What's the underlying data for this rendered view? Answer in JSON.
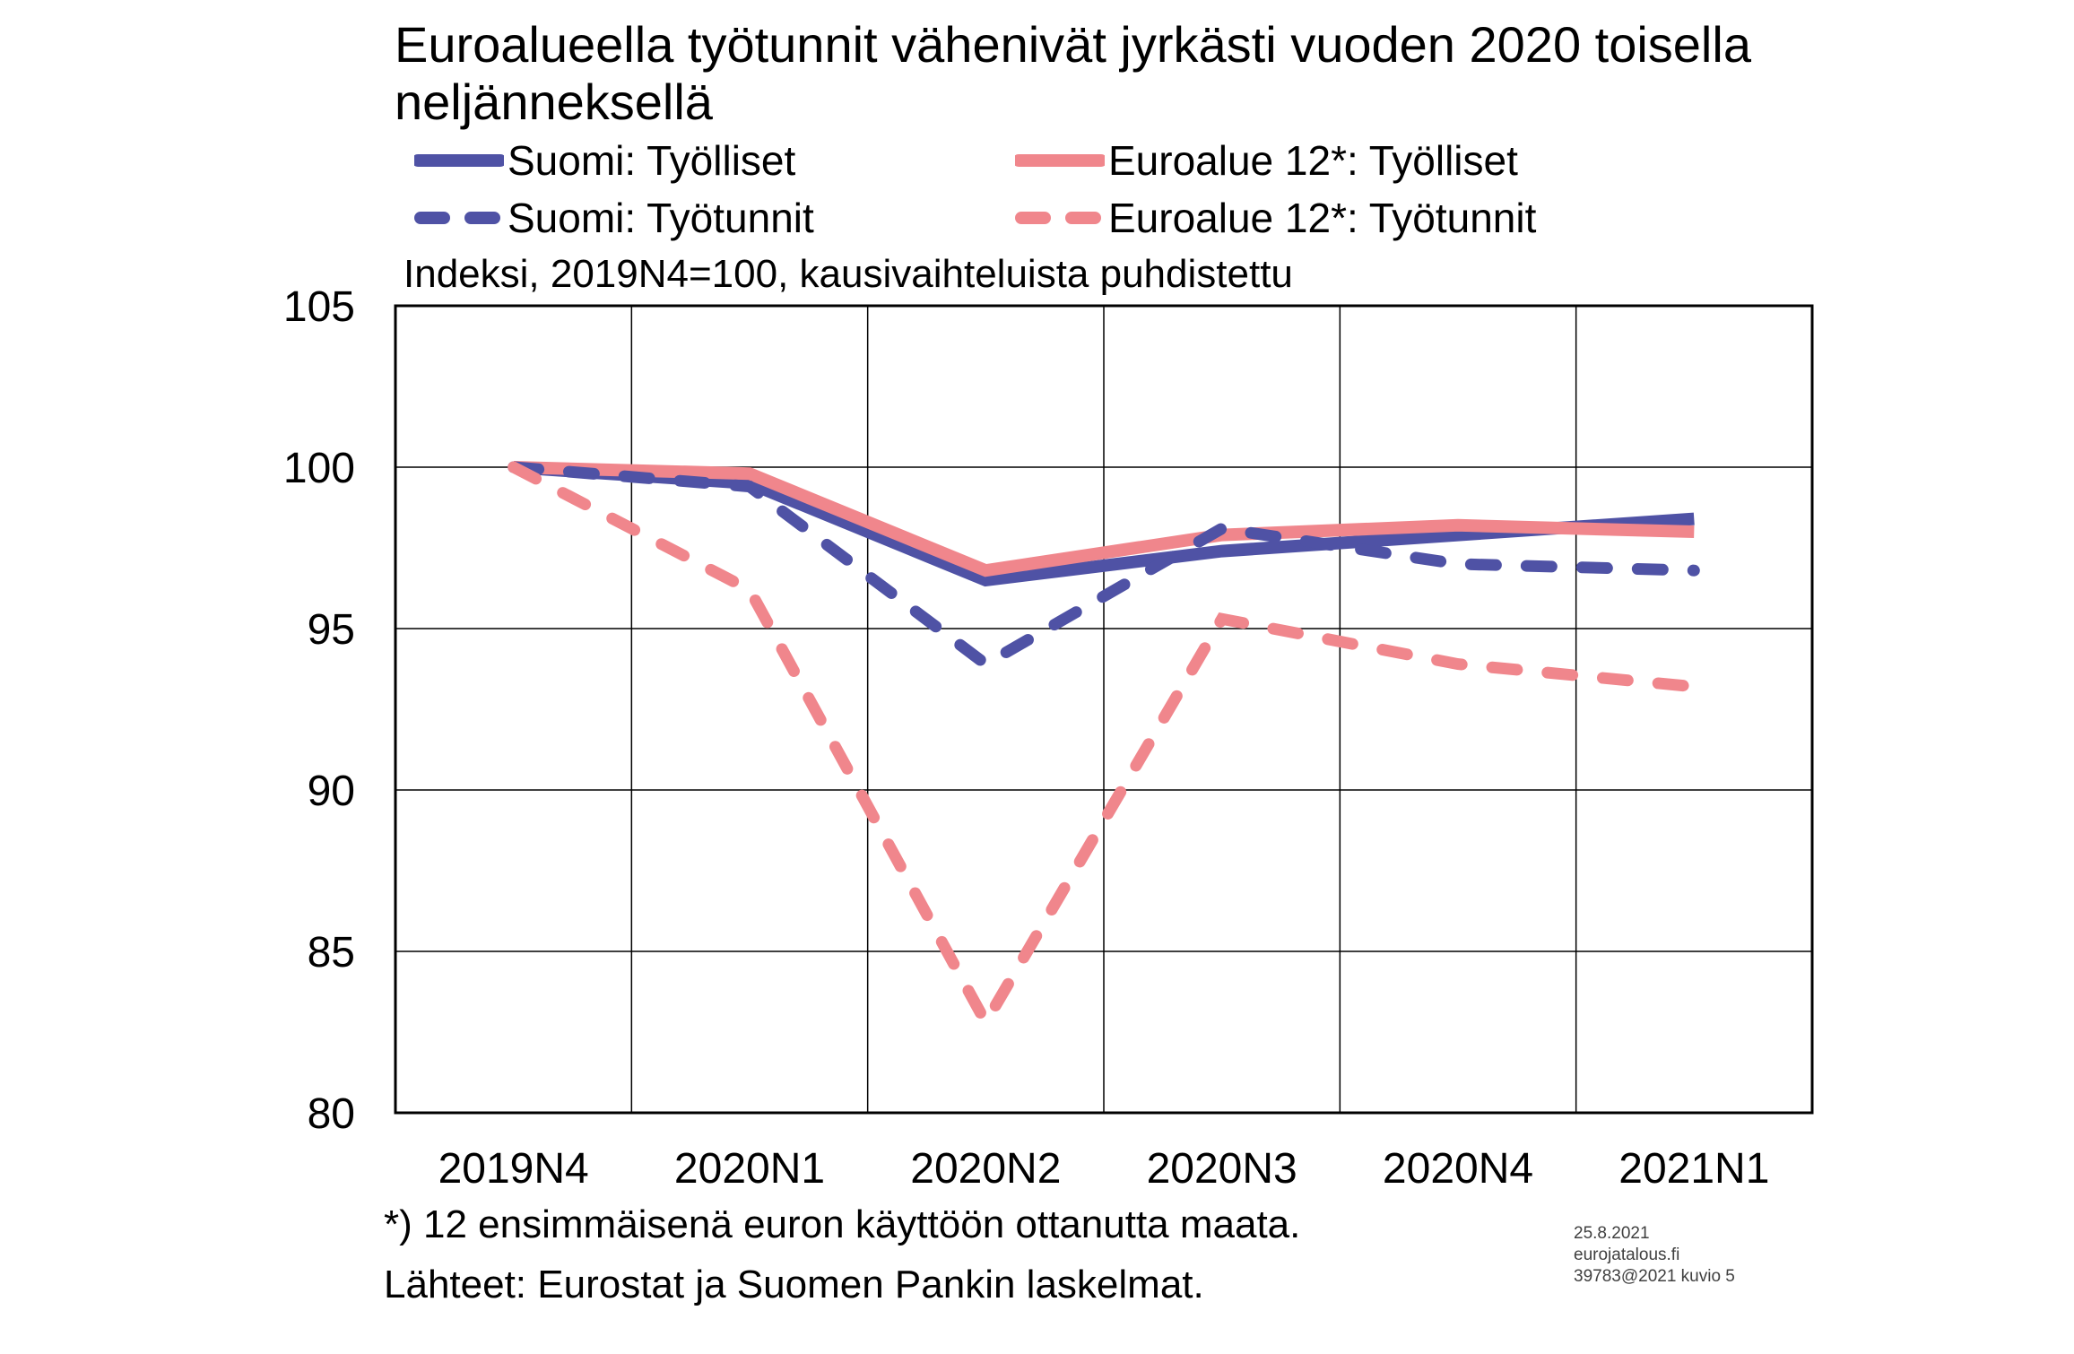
{
  "title": "Euroalueella työtunnit vähenivät jyrkästi vuoden 2020 toisella neljänneksellä",
  "legend": [
    {
      "label": "Suomi: Työlliset",
      "color": "#4f52a5",
      "dash": false
    },
    {
      "label": "Euroalue 12*: Työlliset",
      "color": "#f0868c",
      "dash": false
    },
    {
      "label": "Suomi: Työtunnit",
      "color": "#4f52a5",
      "dash": true
    },
    {
      "label": "Euroalue 12*: Työtunnit",
      "color": "#f0868c",
      "dash": true
    }
  ],
  "footnote": {
    "line1": "*) 12 ensimmäisenä euron käyttöön ottanutta maata.",
    "line2": "Lähteet: Eurostat ja Suomen Pankin laskelmat."
  },
  "meta": {
    "date": "25.8.2021",
    "site": "eurojatalous.fi",
    "ref": "39783@2021  kuvio 5"
  },
  "chart_data": {
    "type": "line",
    "subtitle": "Indeksi, 2019N4=100, kausivaihteluista puhdistettu",
    "categories": [
      "2019N4",
      "2020N1",
      "2020N2",
      "2020N3",
      "2020N4",
      "2021N1"
    ],
    "ylim": [
      80,
      105
    ],
    "yticks": [
      80,
      85,
      90,
      95,
      100,
      105
    ],
    "grid": true,
    "series": [
      {
        "name": "Suomi: Työlliset",
        "color": "#4f52a5",
        "dash": false,
        "values": [
          100,
          99.5,
          96.5,
          97.4,
          97.9,
          98.4
        ]
      },
      {
        "name": "Euroalue 12*: Työlliset",
        "color": "#f0868c",
        "dash": false,
        "values": [
          100,
          99.8,
          96.8,
          97.9,
          98.2,
          98.0
        ]
      },
      {
        "name": "Suomi: Työtunnit",
        "color": "#4f52a5",
        "dash": true,
        "values": [
          100,
          99.4,
          93.9,
          98.1,
          97.0,
          96.8
        ]
      },
      {
        "name": "Euroalue 12*: Työtunnit",
        "color": "#f0868c",
        "dash": true,
        "values": [
          100,
          96.2,
          82.8,
          95.3,
          93.9,
          93.2
        ]
      }
    ]
  }
}
